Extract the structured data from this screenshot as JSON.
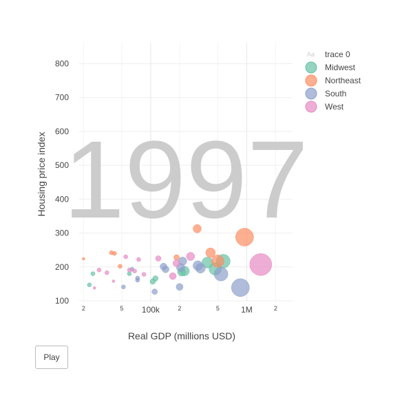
{
  "chart_data": {
    "type": "scatter",
    "frame_label": "1997",
    "xlabel": "Real GDP (millions USD)",
    "ylabel": "Housing price index",
    "x_scale": "log",
    "xlim": [
      18000,
      3000000
    ],
    "ylim": [
      100,
      860
    ],
    "y_ticks": [
      100,
      200,
      300,
      400,
      500,
      600,
      700,
      800
    ],
    "x_ticks": [
      {
        "value": 20000,
        "label": "2",
        "minor": true
      },
      {
        "value": 50000,
        "label": "5",
        "minor": true
      },
      {
        "value": 100000,
        "label": "100k",
        "minor": false
      },
      {
        "value": 200000,
        "label": "2",
        "minor": true
      },
      {
        "value": 500000,
        "label": "5",
        "minor": true
      },
      {
        "value": 1000000,
        "label": "1M",
        "minor": false
      },
      {
        "value": 2000000,
        "label": "2",
        "minor": true
      }
    ],
    "grid": true,
    "legend_placement": "top-right",
    "legend_title": "trace 0",
    "series": [
      {
        "name": "Midwest",
        "color": "#66c2a5",
        "points": [
          {
            "x": 23000,
            "y": 147,
            "size": 3
          },
          {
            "x": 25000,
            "y": 180,
            "size": 3
          },
          {
            "x": 60000,
            "y": 180,
            "size": 3
          },
          {
            "x": 105000,
            "y": 157,
            "size": 4
          },
          {
            "x": 112000,
            "y": 166,
            "size": 4
          },
          {
            "x": 210000,
            "y": 185,
            "size": 6
          },
          {
            "x": 225000,
            "y": 188,
            "size": 7
          },
          {
            "x": 390000,
            "y": 213,
            "size": 8
          },
          {
            "x": 470000,
            "y": 194,
            "size": 9
          },
          {
            "x": 570000,
            "y": 217,
            "size": 10
          }
        ]
      },
      {
        "name": "Northeast",
        "color": "#fc8d62",
        "points": [
          {
            "x": 20000,
            "y": 224,
            "size": 2
          },
          {
            "x": 39000,
            "y": 242,
            "size": 3
          },
          {
            "x": 42000,
            "y": 240,
            "size": 3
          },
          {
            "x": 48000,
            "y": 202,
            "size": 3
          },
          {
            "x": 186000,
            "y": 228,
            "size": 4
          },
          {
            "x": 305000,
            "y": 313,
            "size": 6
          },
          {
            "x": 420000,
            "y": 242,
            "size": 7
          },
          {
            "x": 500000,
            "y": 217,
            "size": 9
          },
          {
            "x": 950000,
            "y": 288,
            "size": 13
          }
        ]
      },
      {
        "name": "South",
        "color": "#8da0cb",
        "points": [
          {
            "x": 52000,
            "y": 141,
            "size": 3
          },
          {
            "x": 64000,
            "y": 193,
            "size": 3
          },
          {
            "x": 73000,
            "y": 167,
            "size": 3
          },
          {
            "x": 73000,
            "y": 161,
            "size": 3
          },
          {
            "x": 110000,
            "y": 127,
            "size": 4
          },
          {
            "x": 136000,
            "y": 201,
            "size": 5
          },
          {
            "x": 143000,
            "y": 193,
            "size": 5
          },
          {
            "x": 200000,
            "y": 141,
            "size": 5
          },
          {
            "x": 205000,
            "y": 198,
            "size": 6
          },
          {
            "x": 215000,
            "y": 217,
            "size": 6
          },
          {
            "x": 310000,
            "y": 204,
            "size": 7
          },
          {
            "x": 330000,
            "y": 196,
            "size": 7
          },
          {
            "x": 540000,
            "y": 179,
            "size": 10
          },
          {
            "x": 860000,
            "y": 139,
            "size": 13
          }
        ]
      },
      {
        "name": "West",
        "color": "#e78ac3",
        "points": [
          {
            "x": 26000,
            "y": 138,
            "size": 2
          },
          {
            "x": 29000,
            "y": 191,
            "size": 3
          },
          {
            "x": 35000,
            "y": 183,
            "size": 3
          },
          {
            "x": 41000,
            "y": 158,
            "size": 2
          },
          {
            "x": 55000,
            "y": 230,
            "size": 3
          },
          {
            "x": 60000,
            "y": 191,
            "size": 3
          },
          {
            "x": 68000,
            "y": 188,
            "size": 3
          },
          {
            "x": 75000,
            "y": 222,
            "size": 3
          },
          {
            "x": 85000,
            "y": 178,
            "size": 3
          },
          {
            "x": 120000,
            "y": 225,
            "size": 4
          },
          {
            "x": 170000,
            "y": 173,
            "size": 5
          },
          {
            "x": 185000,
            "y": 211,
            "size": 5
          },
          {
            "x": 260000,
            "y": 231,
            "size": 6
          },
          {
            "x": 1400000,
            "y": 207,
            "size": 16
          }
        ]
      }
    ]
  },
  "controls": {
    "play_label": "Play"
  }
}
